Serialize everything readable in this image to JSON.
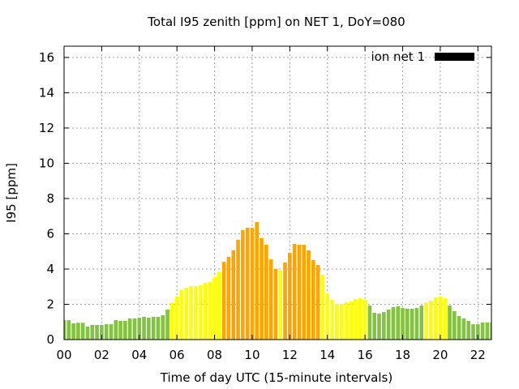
{
  "chart_data": {
    "type": "bar",
    "title": "Total I95 zenith [ppm] on NET 1, DoY=080",
    "xlabel": "Time of day UTC (15-minute intervals)",
    "ylabel": "I95 [ppm]",
    "xlim": [
      0,
      22.72
    ],
    "ylim": [
      0,
      16.64
    ],
    "bar_width_hours": 0.2,
    "grid": true,
    "legend": {
      "placement": "top-right",
      "entries": [
        {
          "label": "ion net 1",
          "color": "#000000"
        }
      ]
    },
    "x_ticks": [
      {
        "value": 0,
        "label": "00"
      },
      {
        "value": 2,
        "label": "02"
      },
      {
        "value": 4,
        "label": "04"
      },
      {
        "value": 6,
        "label": "06"
      },
      {
        "value": 8,
        "label": "08"
      },
      {
        "value": 10,
        "label": "10"
      },
      {
        "value": 12,
        "label": "12"
      },
      {
        "value": 14,
        "label": "14"
      },
      {
        "value": 16,
        "label": "16"
      },
      {
        "value": 18,
        "label": "18"
      },
      {
        "value": 20,
        "label": "20"
      },
      {
        "value": 22,
        "label": "22"
      }
    ],
    "y_ticks": [
      {
        "value": 0,
        "label": "0"
      },
      {
        "value": 2,
        "label": "2"
      },
      {
        "value": 4,
        "label": "4"
      },
      {
        "value": 6,
        "label": "6"
      },
      {
        "value": 8,
        "label": "8"
      },
      {
        "value": 10,
        "label": "10"
      },
      {
        "value": 12,
        "label": "12"
      },
      {
        "value": 14,
        "label": "14"
      },
      {
        "value": 16,
        "label": "16"
      }
    ],
    "level_colors": {
      "low": "#84c341",
      "medium": "#ffff00",
      "high": "#ffa500"
    },
    "series": [
      {
        "name": "ion net 1",
        "x_hours_step": 0.25,
        "values": [
          1.1,
          1.1,
          0.92,
          0.95,
          0.95,
          0.74,
          0.83,
          0.83,
          0.83,
          0.87,
          0.87,
          1.1,
          1.06,
          1.06,
          1.2,
          1.2,
          1.24,
          1.29,
          1.24,
          1.29,
          1.29,
          1.38,
          1.7,
          2.07,
          2.44,
          2.81,
          2.95,
          3.03,
          3.03,
          3.08,
          3.22,
          3.26,
          3.54,
          3.86,
          4.41,
          4.69,
          5.06,
          5.66,
          6.21,
          6.34,
          6.34,
          6.67,
          5.75,
          5.38,
          4.55,
          4.0,
          3.91,
          4.37,
          4.92,
          5.43,
          5.38,
          5.38,
          5.06,
          4.51,
          4.23,
          3.68,
          2.62,
          2.25,
          2.02,
          2.02,
          2.11,
          2.16,
          2.3,
          2.34,
          2.25,
          1.93,
          1.52,
          1.47,
          1.56,
          1.7,
          1.84,
          1.89,
          1.79,
          1.75,
          1.75,
          1.79,
          1.93,
          2.11,
          2.21,
          2.39,
          2.44,
          2.34,
          1.93,
          1.61,
          1.33,
          1.2,
          1.06,
          0.87,
          0.87,
          0.97,
          0.97,
          0.97
        ],
        "levels": [
          "low",
          "low",
          "low",
          "low",
          "low",
          "low",
          "low",
          "low",
          "low",
          "low",
          "low",
          "low",
          "low",
          "low",
          "low",
          "low",
          "low",
          "low",
          "low",
          "low",
          "low",
          "low",
          "low",
          "medium",
          "medium",
          "medium",
          "medium",
          "medium",
          "medium",
          "medium",
          "medium",
          "medium",
          "medium",
          "medium",
          "high",
          "high",
          "high",
          "high",
          "high",
          "high",
          "high",
          "high",
          "high",
          "high",
          "high",
          "high",
          "medium",
          "high",
          "high",
          "high",
          "high",
          "high",
          "high",
          "high",
          "high",
          "medium",
          "medium",
          "medium",
          "medium",
          "medium",
          "medium",
          "medium",
          "medium",
          "medium",
          "medium",
          "low",
          "low",
          "low",
          "low",
          "low",
          "low",
          "low",
          "low",
          "low",
          "low",
          "low",
          "low",
          "medium",
          "medium",
          "medium",
          "medium",
          "medium",
          "low",
          "low",
          "low",
          "low",
          "low",
          "low",
          "low",
          "low",
          "low",
          "low"
        ]
      }
    ]
  }
}
